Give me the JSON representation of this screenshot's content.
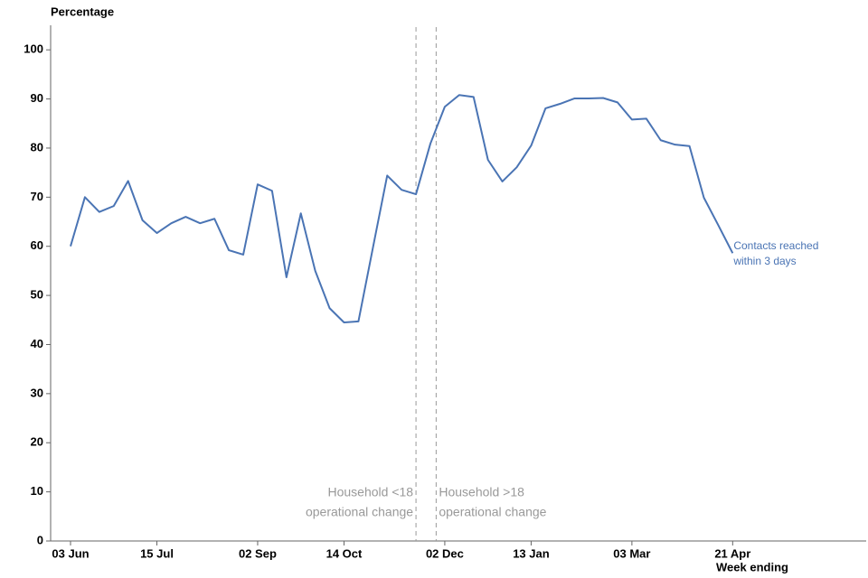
{
  "chart_data": {
    "type": "line",
    "y_axis_label": "Percentage",
    "x_axis_label": "Week ending",
    "categories": [
      "03 Jun",
      null,
      null,
      null,
      null,
      null,
      "15 Jul",
      null,
      null,
      null,
      null,
      null,
      null,
      "02 Sep",
      null,
      null,
      null,
      null,
      null,
      "14 Oct",
      null,
      null,
      null,
      null,
      null,
      null,
      "02 Dec",
      null,
      null,
      null,
      null,
      null,
      "13 Jan",
      null,
      null,
      null,
      null,
      null,
      null,
      "03 Mar",
      null,
      null,
      null,
      null,
      null,
      null,
      "21 Apr"
    ],
    "series": [
      {
        "name": "Contacts reached within 3 days",
        "color": "#4a74b4",
        "values": [
          60,
          70,
          67,
          68.2,
          73.3,
          65.3,
          62.7,
          64.7,
          66,
          64.7,
          65.6,
          59.2,
          58.3,
          72.6,
          71.3,
          53.7,
          66.7,
          55,
          47.4,
          44.5,
          44.7,
          59.6,
          74.4,
          71.5,
          70.6,
          80.9,
          88.4,
          90.8,
          90.4,
          77.6,
          73.2,
          76.1,
          80.5,
          88.1,
          89,
          90.1,
          90.1,
          90.2,
          89.3,
          85.8,
          86,
          81.6,
          80.7,
          80.4,
          69.9,
          64.3,
          58.6
        ]
      }
    ],
    "ylim": [
      0,
      105
    ],
    "yticks": [
      0,
      10,
      20,
      30,
      40,
      50,
      60,
      70,
      80,
      90,
      100
    ],
    "grid": false,
    "annotations": [
      {
        "lines": [
          "Household <18",
          "operational change"
        ],
        "x": 24.0,
        "side": "left"
      },
      {
        "lines": [
          "Household >18",
          "operational change"
        ],
        "x": 25.4,
        "side": "right"
      }
    ]
  }
}
